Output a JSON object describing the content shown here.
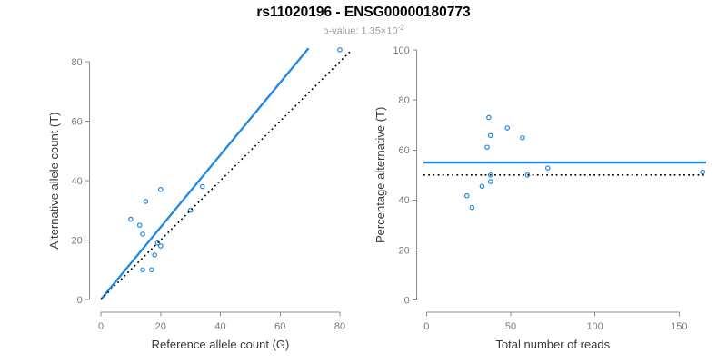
{
  "title": "rs11020196 - ENSG00000180773",
  "subtitle": {
    "prefix": "p-value: 1.35×10",
    "exponent": "-2"
  },
  "colors": {
    "point_blue": "#1E88E5",
    "line_blue": "#1E88E5",
    "dotted_black": "#000000",
    "axis_gray": "#8c8c8c",
    "tick_label_gray": "#7a7a7a",
    "axis_title_dark": "#383838",
    "subtitle_gray": "#9a9a9a"
  },
  "chart_data": [
    {
      "type": "scatter",
      "title": "",
      "xlabel": "Reference allele count (G)",
      "ylabel": "Alternative allele count (T)",
      "xlim": [
        0,
        84
      ],
      "ylim": [
        0,
        84
      ],
      "xticks": [
        0,
        20,
        40,
        60,
        80
      ],
      "yticks": [
        0,
        20,
        40,
        60,
        80
      ],
      "grid": false,
      "legend": "none",
      "points": [
        [
          80,
          84
        ],
        [
          34,
          38
        ],
        [
          20,
          37
        ],
        [
          15,
          33
        ],
        [
          30,
          30
        ],
        [
          10,
          27
        ],
        [
          13,
          25
        ],
        [
          14,
          22
        ],
        [
          19,
          19
        ],
        [
          20,
          18
        ],
        [
          18,
          15
        ],
        [
          14,
          10
        ],
        [
          17,
          10
        ]
      ],
      "lines": [
        {
          "name": "fit-line",
          "style": "solid",
          "color": "#1E88E5",
          "x1": 0,
          "y1": 0,
          "x2": 69.5,
          "y2": 84.5
        },
        {
          "name": "identity-line",
          "style": "dotted",
          "color": "#000000",
          "x1": 0,
          "y1": 0,
          "x2": 84,
          "y2": 84
        }
      ]
    },
    {
      "type": "scatter",
      "title": "",
      "xlabel": "Total number of reads",
      "ylabel": "Percentage alternative (T)",
      "xlim": [
        0,
        166
      ],
      "ylim": [
        0,
        100
      ],
      "xticks": [
        0,
        50,
        100,
        150
      ],
      "yticks": [
        0,
        20,
        40,
        60,
        80,
        100
      ],
      "grid": false,
      "legend": "none",
      "points": [
        [
          164,
          51.2
        ],
        [
          72,
          52.8
        ],
        [
          57,
          64.9
        ],
        [
          48,
          68.8
        ],
        [
          60,
          50.0
        ],
        [
          37,
          73.0
        ],
        [
          38,
          65.8
        ],
        [
          36,
          61.1
        ],
        [
          38,
          50.0
        ],
        [
          38,
          47.4
        ],
        [
          33,
          45.5
        ],
        [
          24,
          41.7
        ],
        [
          27,
          37.0
        ]
      ],
      "lines": [
        {
          "name": "mean-percentage-line",
          "style": "solid",
          "color": "#1E88E5",
          "y": 55
        },
        {
          "name": "null-50-percent-line",
          "style": "dotted",
          "color": "#000000",
          "y": 50
        }
      ]
    }
  ]
}
